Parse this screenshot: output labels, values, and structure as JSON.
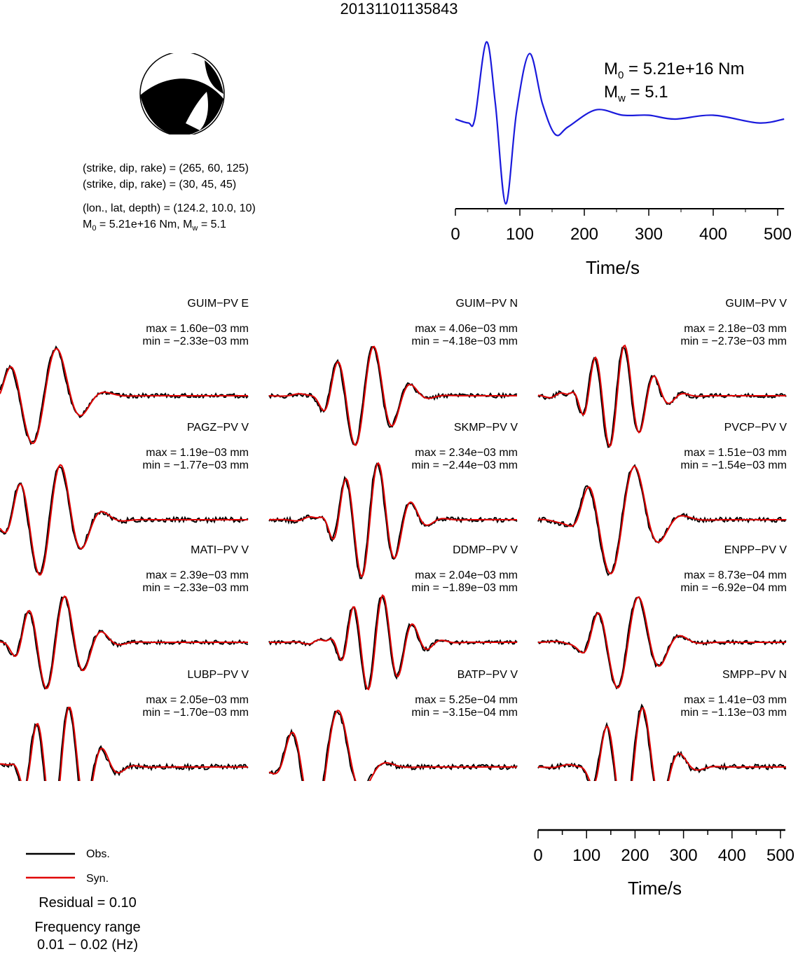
{
  "title": "20131101135843",
  "focal": {
    "np1": "(strike, dip, rake) = (265, 60, 125)",
    "np2": "(strike, dip, rake) = (30, 45, 45)",
    "loc": "(lon., lat, depth) = (124.2, 10.0, 10)",
    "m0_prefix": "M",
    "m0_sub": "0",
    "m0_mid": " = 5.21e+16 Nm, M",
    "mw_sub": "w",
    "mw_end": " = 5.1"
  },
  "stf": {
    "m0_label": "M",
    "m0_sub": "0",
    "m0_val": " = 5.21e+16 Nm",
    "mw_label": "M",
    "mw_sub": "w",
    "mw_val": " = 5.1",
    "xlabel": "Time/s",
    "ticks": [
      "0",
      "100",
      "200",
      "300",
      "400",
      "500"
    ],
    "color": "#1a1adc"
  },
  "stations": [
    {
      "name": "GUIM−PV E",
      "max": "max = 1.60e−03 mm",
      "min": "min = −2.33e−03 mm"
    },
    {
      "name": "GUIM−PV N",
      "max": "max = 4.06e−03 mm",
      "min": "min = −4.18e−03 mm"
    },
    {
      "name": "GUIM−PV V",
      "max": "max = 2.18e−03 mm",
      "min": "min = −2.73e−03 mm"
    },
    {
      "name": "PAGZ−PV V",
      "max": "max = 1.19e−03 mm",
      "min": "min = −1.77e−03 mm"
    },
    {
      "name": "SKMP−PV V",
      "max": "max = 2.34e−03 mm",
      "min": "min = −2.44e−03 mm"
    },
    {
      "name": "PVCP−PV V",
      "max": "max = 1.51e−03 mm",
      "min": "min = −1.54e−03 mm"
    },
    {
      "name": "MATI−PV V",
      "max": "max = 2.39e−03 mm",
      "min": "min = −2.33e−03 mm"
    },
    {
      "name": "DDMP−PV V",
      "max": "max = 2.04e−03 mm",
      "min": "min = −1.89e−03 mm"
    },
    {
      "name": "ENPP−PV V",
      "max": "max = 8.73e−04 mm",
      "min": "min = −6.92e−04 mm"
    },
    {
      "name": "LUBP−PV V",
      "max": "max = 2.05e−03 mm",
      "min": "min = −1.70e−03 mm"
    },
    {
      "name": "BATP−PV V",
      "max": "max = 5.25e−04 mm",
      "min": "min = −3.15e−04 mm"
    },
    {
      "name": "SMPP−PV N",
      "max": "max = 1.41e−03 mm",
      "min": "min = −1.13e−03 mm"
    }
  ],
  "wave_axis": {
    "xlabel": "Time/s",
    "ticks": [
      "0",
      "100",
      "200",
      "300",
      "400",
      "500"
    ]
  },
  "legend": {
    "obs": "Obs.",
    "syn": "Syn.",
    "obs_color": "#000000",
    "syn_color": "#e00000"
  },
  "residual": "Residual = 0.10",
  "freq_title": "Frequency range",
  "freq_value": "0.01 − 0.02 (Hz)",
  "chart_data": {
    "type": "line",
    "title": "20131101135843",
    "source_time_function": {
      "xlabel": "Time/s",
      "xlim": [
        0,
        510
      ],
      "x": [
        0,
        20,
        30,
        48,
        62,
        78,
        95,
        115,
        135,
        155,
        175,
        218,
        260,
        300,
        340,
        400,
        470,
        510
      ],
      "y": [
        0.0,
        -0.05,
        0.0,
        1.0,
        0.2,
        -1.1,
        0.1,
        0.85,
        0.2,
        -0.2,
        -0.1,
        0.12,
        0.05,
        0.05,
        0.0,
        0.05,
        -0.05,
        0.0
      ]
    },
    "waveforms": {
      "xlabel": "Time/s",
      "xlim": [
        0,
        510
      ],
      "series": [
        {
          "name": "Obs."
        },
        {
          "name": "Syn."
        }
      ]
    }
  }
}
